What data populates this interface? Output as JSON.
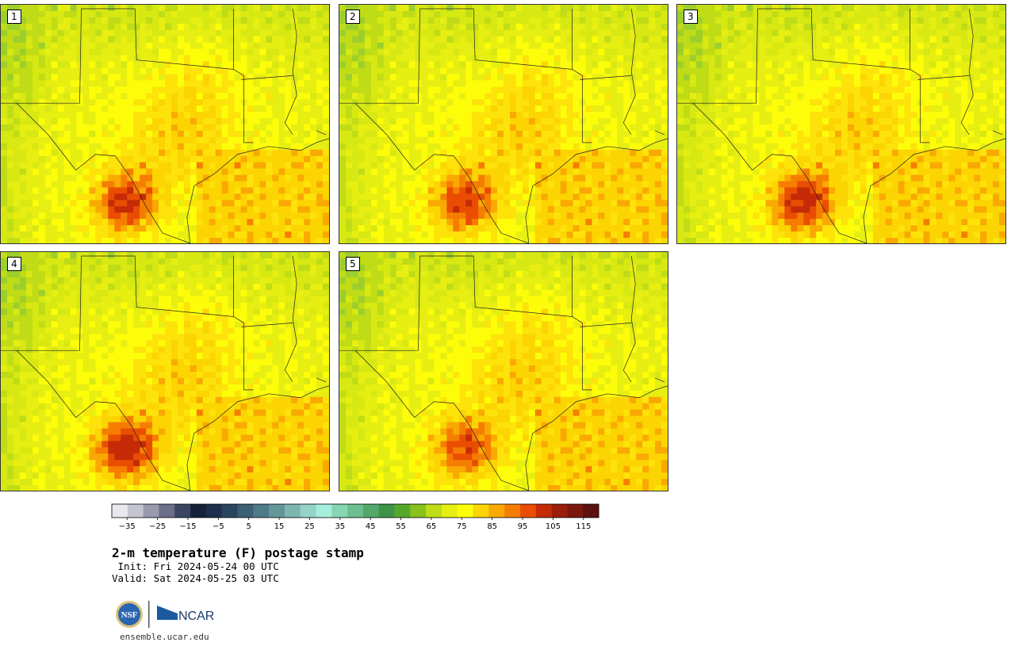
{
  "panels": [
    {
      "label": "1",
      "variant": 1.0
    },
    {
      "label": "2",
      "variant": 0.95
    },
    {
      "label": "3",
      "variant": 1.05
    },
    {
      "label": "4",
      "variant": 1.1
    },
    {
      "label": "5",
      "variant": 0.9
    }
  ],
  "colorbar": {
    "colors": [
      "#e8e8ee",
      "#c5c5d2",
      "#9a9aae",
      "#6b6f88",
      "#3b4563",
      "#16223a",
      "#1d2f4c",
      "#2a4560",
      "#3d5e75",
      "#4f7a88",
      "#639699",
      "#7db5b1",
      "#93d3c8",
      "#a6eedc",
      "#86d6b3",
      "#6cbf8f",
      "#52a86a",
      "#3d9447",
      "#56a82a",
      "#88c21d",
      "#bfdc16",
      "#e7ee12",
      "#fdfd0a",
      "#fbd402",
      "#f9a902",
      "#f57e02",
      "#ea4d02",
      "#c42b06",
      "#9a1e0a",
      "#7b180e",
      "#5d120e"
    ],
    "tick_labels": [
      "-35",
      "-25",
      "-15",
      "-5",
      "5",
      "15",
      "25",
      "35",
      "45",
      "55",
      "65",
      "75",
      "85",
      "95",
      "105",
      "115"
    ]
  },
  "text": {
    "title": "2-m temperature (F) postage stamp",
    "init": " Init: Fri 2024-05-24 00 UTC",
    "valid": "Valid: Sat 2024-05-25 03 UTC",
    "url": "ensemble.ucar.edu",
    "nsf": "NSF",
    "ncar": "NCAR"
  }
}
